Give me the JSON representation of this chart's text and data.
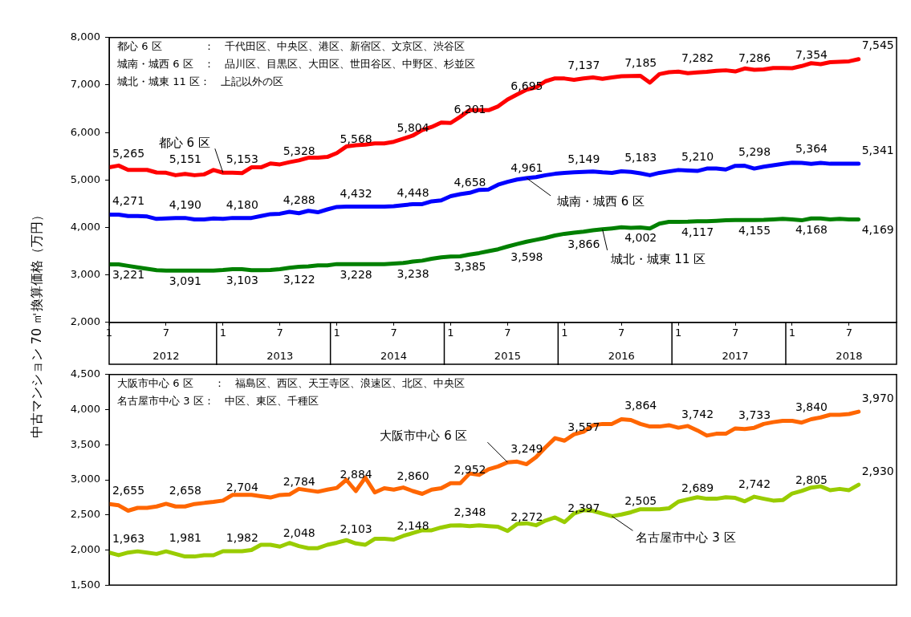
{
  "chart_data": [
    {
      "type": "line",
      "ylabel": "中古マンション 70 ㎡換算価格（万円）",
      "marker": "none",
      "line_style": "solid",
      "annotations": [
        "都心 6 区　　　　：　千代田区、中央区、港区、新宿区、文京区、渋谷区",
        "城南・城西 6 区　：　品川区、目黒区、大田区、世田谷区、中野区、杉並区",
        "城北・城東 11 区：　上記以外の区"
      ],
      "x": [
        "2012-01",
        "2012-02",
        "2012-03",
        "2012-04",
        "2012-05",
        "2012-06",
        "2012-07",
        "2012-08",
        "2012-09",
        "2012-10",
        "2012-11",
        "2012-12",
        "2013-01",
        "2013-02",
        "2013-03",
        "2013-04",
        "2013-05",
        "2013-06",
        "2013-07",
        "2013-08",
        "2013-09",
        "2013-10",
        "2013-11",
        "2013-12",
        "2014-01",
        "2014-02",
        "2014-03",
        "2014-04",
        "2014-05",
        "2014-06",
        "2014-07",
        "2014-08",
        "2014-09",
        "2014-10",
        "2014-11",
        "2014-12",
        "2015-01",
        "2015-02",
        "2015-03",
        "2015-04",
        "2015-05",
        "2015-06",
        "2015-07",
        "2015-08",
        "2015-09",
        "2015-10",
        "2015-11",
        "2015-12",
        "2016-01",
        "2016-02",
        "2016-03",
        "2016-04",
        "2016-05",
        "2016-06",
        "2016-07",
        "2016-08",
        "2016-09",
        "2016-10",
        "2016-11",
        "2016-12",
        "2017-01",
        "2017-02",
        "2017-03",
        "2017-04",
        "2017-05",
        "2017-06",
        "2017-07",
        "2017-08",
        "2017-09",
        "2017-10",
        "2017-11",
        "2017-12",
        "2018-01",
        "2018-02",
        "2018-03",
        "2018-04",
        "2018-05",
        "2018-06",
        "2018-07",
        "2018-08"
      ],
      "xlim": [
        "2012-01",
        "2018-12"
      ],
      "xticks": [
        {
          "value": "2012-01",
          "label": "1"
        },
        {
          "value": "2012-07",
          "label": "7"
        },
        {
          "value": "2013-01",
          "label": "1"
        },
        {
          "value": "2013-07",
          "label": "7"
        },
        {
          "value": "2014-01",
          "label": "1"
        },
        {
          "value": "2014-07",
          "label": "7"
        },
        {
          "value": "2015-01",
          "label": "1"
        },
        {
          "value": "2015-07",
          "label": "7"
        },
        {
          "value": "2016-01",
          "label": "1"
        },
        {
          "value": "2016-07",
          "label": "7"
        },
        {
          "value": "2017-01",
          "label": "1"
        },
        {
          "value": "2017-07",
          "label": "7"
        },
        {
          "value": "2018-01",
          "label": "1"
        },
        {
          "value": "2018-07",
          "label": "7"
        }
      ],
      "x2lim": [
        "2012-01",
        "2018-12"
      ],
      "x2ticks": [
        {
          "value": "2012-07",
          "label": "2012"
        },
        {
          "value": "2013-07",
          "label": "2013"
        },
        {
          "value": "2014-07",
          "label": "2014"
        },
        {
          "value": "2015-07",
          "label": "2015"
        },
        {
          "value": "2016-07",
          "label": "2016"
        },
        {
          "value": "2017-07",
          "label": "2017"
        },
        {
          "value": "2018-07",
          "label": "2018"
        }
      ],
      "ylim": [
        2000,
        8000
      ],
      "yticks": [
        {
          "value": 2000,
          "label": "2,000"
        },
        {
          "value": 3000,
          "label": "3,000"
        },
        {
          "value": 4000,
          "label": "4,000"
        },
        {
          "value": 5000,
          "label": "5,000"
        },
        {
          "value": 6000,
          "label": "6,000"
        },
        {
          "value": 7000,
          "label": "7,000"
        },
        {
          "value": 8000,
          "label": "8,000"
        }
      ],
      "series": [
        {
          "name": "都心 6 区",
          "color": "#ff0000",
          "values": [
            5265,
            5303,
            5212,
            5212,
            5212,
            5157,
            5151,
            5100,
            5128,
            5100,
            5117,
            5210,
            5153,
            5155,
            5144,
            5265,
            5265,
            5347,
            5328,
            5375,
            5413,
            5468,
            5468,
            5485,
            5568,
            5705,
            5732,
            5743,
            5770,
            5770,
            5804,
            5869,
            5935,
            6050,
            6117,
            6210,
            6201,
            6330,
            6470,
            6470,
            6470,
            6550,
            6695,
            6800,
            6900,
            6950,
            7080,
            7140,
            7137,
            7110,
            7140,
            7160,
            7130,
            7160,
            7185,
            7190,
            7195,
            7050,
            7230,
            7270,
            7282,
            7250,
            7265,
            7280,
            7300,
            7310,
            7286,
            7350,
            7320,
            7330,
            7360,
            7360,
            7354,
            7400,
            7460,
            7440,
            7480,
            7490,
            7500,
            7545
          ],
          "value_labels": [
            "5,265",
            null,
            null,
            null,
            null,
            null,
            "5,151",
            null,
            null,
            null,
            null,
            null,
            "5,153",
            null,
            null,
            null,
            null,
            null,
            "5,328",
            null,
            null,
            null,
            null,
            null,
            "5,568",
            null,
            null,
            null,
            null,
            null,
            "5,804",
            null,
            null,
            null,
            null,
            null,
            "6,201",
            null,
            null,
            null,
            null,
            null,
            "6,695",
            null,
            null,
            null,
            null,
            null,
            "7,137",
            null,
            null,
            null,
            null,
            null,
            "7,185",
            null,
            null,
            null,
            null,
            null,
            "7,282",
            null,
            null,
            null,
            null,
            null,
            "7,286",
            null,
            null,
            null,
            null,
            null,
            "7,354",
            null,
            null,
            null,
            null,
            null,
            null,
            "7,545"
          ]
        },
        {
          "name": "城南・城西 6 区",
          "color": "#0000ff",
          "values": [
            4271,
            4271,
            4240,
            4240,
            4230,
            4180,
            4190,
            4200,
            4200,
            4170,
            4170,
            4190,
            4180,
            4200,
            4200,
            4200,
            4240,
            4280,
            4288,
            4330,
            4300,
            4350,
            4320,
            4380,
            4432,
            4440,
            4440,
            4440,
            4440,
            4440,
            4448,
            4470,
            4490,
            4490,
            4550,
            4570,
            4658,
            4700,
            4730,
            4790,
            4800,
            4900,
            4961,
            5010,
            5040,
            5060,
            5100,
            5130,
            5149,
            5160,
            5170,
            5180,
            5160,
            5150,
            5183,
            5170,
            5140,
            5100,
            5150,
            5180,
            5210,
            5200,
            5190,
            5240,
            5240,
            5220,
            5298,
            5300,
            5240,
            5280,
            5310,
            5340,
            5364,
            5360,
            5340,
            5360,
            5341,
            5341,
            5341,
            5341
          ],
          "value_labels": [
            "4,271",
            null,
            null,
            null,
            null,
            null,
            "4,190",
            null,
            null,
            null,
            null,
            null,
            "4,180",
            null,
            null,
            null,
            null,
            null,
            "4,288",
            null,
            null,
            null,
            null,
            null,
            "4,432",
            null,
            null,
            null,
            null,
            null,
            "4,448",
            null,
            null,
            null,
            null,
            null,
            "4,658",
            null,
            null,
            null,
            null,
            null,
            "4,961",
            null,
            null,
            null,
            null,
            null,
            "5,149",
            null,
            null,
            null,
            null,
            null,
            "5,183",
            null,
            null,
            null,
            null,
            null,
            "5,210",
            null,
            null,
            null,
            null,
            null,
            "5,298",
            null,
            null,
            null,
            null,
            null,
            "5,364",
            null,
            null,
            null,
            null,
            null,
            null,
            "5,341"
          ]
        },
        {
          "name": "城北・城東 11 区",
          "color": "#008000",
          "values": [
            3221,
            3221,
            3190,
            3160,
            3130,
            3100,
            3091,
            3091,
            3091,
            3091,
            3091,
            3091,
            3103,
            3120,
            3120,
            3100,
            3100,
            3103,
            3122,
            3150,
            3170,
            3180,
            3200,
            3200,
            3228,
            3228,
            3228,
            3228,
            3228,
            3228,
            3238,
            3250,
            3280,
            3300,
            3340,
            3370,
            3385,
            3390,
            3430,
            3460,
            3500,
            3540,
            3598,
            3650,
            3700,
            3740,
            3780,
            3830,
            3866,
            3890,
            3910,
            3940,
            3960,
            3980,
            4002,
            3990,
            4000,
            3980,
            4080,
            4117,
            4117,
            4120,
            4130,
            4130,
            4140,
            4150,
            4155,
            4155,
            4155,
            4160,
            4170,
            4180,
            4168,
            4150,
            4190,
            4190,
            4170,
            4180,
            4170,
            4169
          ],
          "value_labels": [
            "3,221",
            null,
            null,
            null,
            null,
            null,
            "3,091",
            null,
            null,
            null,
            null,
            null,
            "3,103",
            null,
            null,
            null,
            null,
            null,
            "3,122",
            null,
            null,
            null,
            null,
            null,
            "3,228",
            null,
            null,
            null,
            null,
            null,
            "3,238",
            null,
            null,
            null,
            null,
            null,
            "3,385",
            null,
            null,
            null,
            null,
            null,
            "3,598",
            null,
            null,
            null,
            null,
            null,
            "3,866",
            null,
            null,
            null,
            null,
            null,
            "4,002",
            null,
            null,
            null,
            null,
            null,
            "4,117",
            null,
            null,
            null,
            null,
            null,
            "4,155",
            null,
            null,
            null,
            null,
            null,
            "4,168",
            null,
            null,
            null,
            null,
            null,
            null,
            "4,169"
          ]
        }
      ]
    },
    {
      "type": "line",
      "marker": "none",
      "line_style": "solid",
      "tick_labels": "y",
      "annotations": [
        "大阪市中心 6 区　　：　福島区、西区、天王寺区、浪速区、北区、中央区",
        "名古屋市中心 3 区：　中区、東区、千種区"
      ],
      "x": [
        "2012-01",
        "2012-02",
        "2012-03",
        "2012-04",
        "2012-05",
        "2012-06",
        "2012-07",
        "2012-08",
        "2012-09",
        "2012-10",
        "2012-11",
        "2012-12",
        "2013-01",
        "2013-02",
        "2013-03",
        "2013-04",
        "2013-05",
        "2013-06",
        "2013-07",
        "2013-08",
        "2013-09",
        "2013-10",
        "2013-11",
        "2013-12",
        "2014-01",
        "2014-02",
        "2014-03",
        "2014-04",
        "2014-05",
        "2014-06",
        "2014-07",
        "2014-08",
        "2014-09",
        "2014-10",
        "2014-11",
        "2014-12",
        "2015-01",
        "2015-02",
        "2015-03",
        "2015-04",
        "2015-05",
        "2015-06",
        "2015-07",
        "2015-08",
        "2015-09",
        "2015-10",
        "2015-11",
        "2015-12",
        "2016-01",
        "2016-02",
        "2016-03",
        "2016-04",
        "2016-05",
        "2016-06",
        "2016-07",
        "2016-08",
        "2016-09",
        "2016-10",
        "2016-11",
        "2016-12",
        "2017-01",
        "2017-02",
        "2017-03",
        "2017-04",
        "2017-05",
        "2017-06",
        "2017-07",
        "2017-08",
        "2017-09",
        "2017-10",
        "2017-11",
        "2017-12",
        "2018-01",
        "2018-02",
        "2018-03",
        "2018-04",
        "2018-05",
        "2018-06",
        "2018-07",
        "2018-08"
      ],
      "xlim": [
        "2012-01",
        "2018-12"
      ],
      "ylim": [
        1500,
        4500
      ],
      "yticks": [
        {
          "value": 1500,
          "label": "1,500"
        },
        {
          "value": 2000,
          "label": "2,000"
        },
        {
          "value": 2500,
          "label": "2,500"
        },
        {
          "value": 3000,
          "label": "3,000"
        },
        {
          "value": 3500,
          "label": "3,500"
        },
        {
          "value": 4000,
          "label": "4,000"
        },
        {
          "value": 4500,
          "label": "4,500"
        }
      ],
      "series": [
        {
          "name": "大阪市中心 6 区",
          "color": "#ff6600",
          "values": [
            2655,
            2636,
            2560,
            2600,
            2600,
            2620,
            2658,
            2620,
            2620,
            2655,
            2670,
            2685,
            2704,
            2785,
            2785,
            2785,
            2766,
            2748,
            2784,
            2790,
            2870,
            2850,
            2830,
            2860,
            2884,
            3000,
            2840,
            3030,
            2820,
            2880,
            2860,
            2890,
            2840,
            2800,
            2860,
            2880,
            2952,
            2950,
            3090,
            3070,
            3150,
            3190,
            3249,
            3259,
            3222,
            3322,
            3463,
            3593,
            3557,
            3648,
            3685,
            3778,
            3796,
            3796,
            3864,
            3852,
            3796,
            3759,
            3759,
            3778,
            3742,
            3767,
            3704,
            3630,
            3656,
            3656,
            3733,
            3722,
            3741,
            3796,
            3822,
            3841,
            3840,
            3815,
            3863,
            3889,
            3926,
            3926,
            3937,
            3970
          ],
          "value_labels": [
            "2,655",
            null,
            null,
            null,
            null,
            null,
            "2,658",
            null,
            null,
            null,
            null,
            null,
            "2,704",
            null,
            null,
            null,
            null,
            null,
            "2,784",
            null,
            null,
            null,
            null,
            null,
            "2,884",
            null,
            null,
            null,
            null,
            null,
            "2,860",
            null,
            null,
            null,
            null,
            null,
            "2,952",
            null,
            null,
            null,
            null,
            null,
            "3,249",
            null,
            null,
            null,
            null,
            null,
            "3,557",
            null,
            null,
            null,
            null,
            null,
            "3,864",
            null,
            null,
            null,
            null,
            null,
            "3,742",
            null,
            null,
            null,
            null,
            null,
            "3,733",
            null,
            null,
            null,
            null,
            null,
            "3,840",
            null,
            null,
            null,
            null,
            null,
            null,
            "3,970"
          ]
        },
        {
          "name": "名古屋市中心 3 区",
          "color": "#99cc00",
          "values": [
            1963,
            1926,
            1963,
            1981,
            1963,
            1944,
            1981,
            1944,
            1907,
            1907,
            1926,
            1926,
            1982,
            1982,
            1982,
            2000,
            2074,
            2074,
            2048,
            2100,
            2055,
            2026,
            2026,
            2074,
            2103,
            2140,
            2093,
            2074,
            2159,
            2159,
            2148,
            2200,
            2240,
            2280,
            2280,
            2320,
            2348,
            2350,
            2340,
            2350,
            2340,
            2330,
            2272,
            2370,
            2381,
            2352,
            2419,
            2463,
            2397,
            2519,
            2567,
            2556,
            2519,
            2481,
            2505,
            2537,
            2581,
            2581,
            2581,
            2593,
            2689,
            2722,
            2752,
            2730,
            2730,
            2752,
            2742,
            2693,
            2759,
            2730,
            2704,
            2710,
            2805,
            2841,
            2889,
            2907,
            2852,
            2870,
            2852,
            2930
          ],
          "value_labels": [
            "1,963",
            null,
            null,
            null,
            null,
            null,
            "1,981",
            null,
            null,
            null,
            null,
            null,
            "1,982",
            null,
            null,
            null,
            null,
            null,
            "2,048",
            null,
            null,
            null,
            null,
            null,
            "2,103",
            null,
            null,
            null,
            null,
            null,
            "2,148",
            null,
            null,
            null,
            null,
            null,
            "2,348",
            null,
            null,
            null,
            null,
            null,
            "2,272",
            null,
            null,
            null,
            null,
            null,
            "2,397",
            null,
            null,
            null,
            null,
            null,
            "2,505",
            null,
            null,
            null,
            null,
            null,
            "2,689",
            null,
            null,
            null,
            null,
            null,
            "2,742",
            null,
            null,
            null,
            null,
            null,
            "2,805",
            null,
            null,
            null,
            null,
            null,
            null,
            "2,930"
          ]
        }
      ]
    }
  ]
}
